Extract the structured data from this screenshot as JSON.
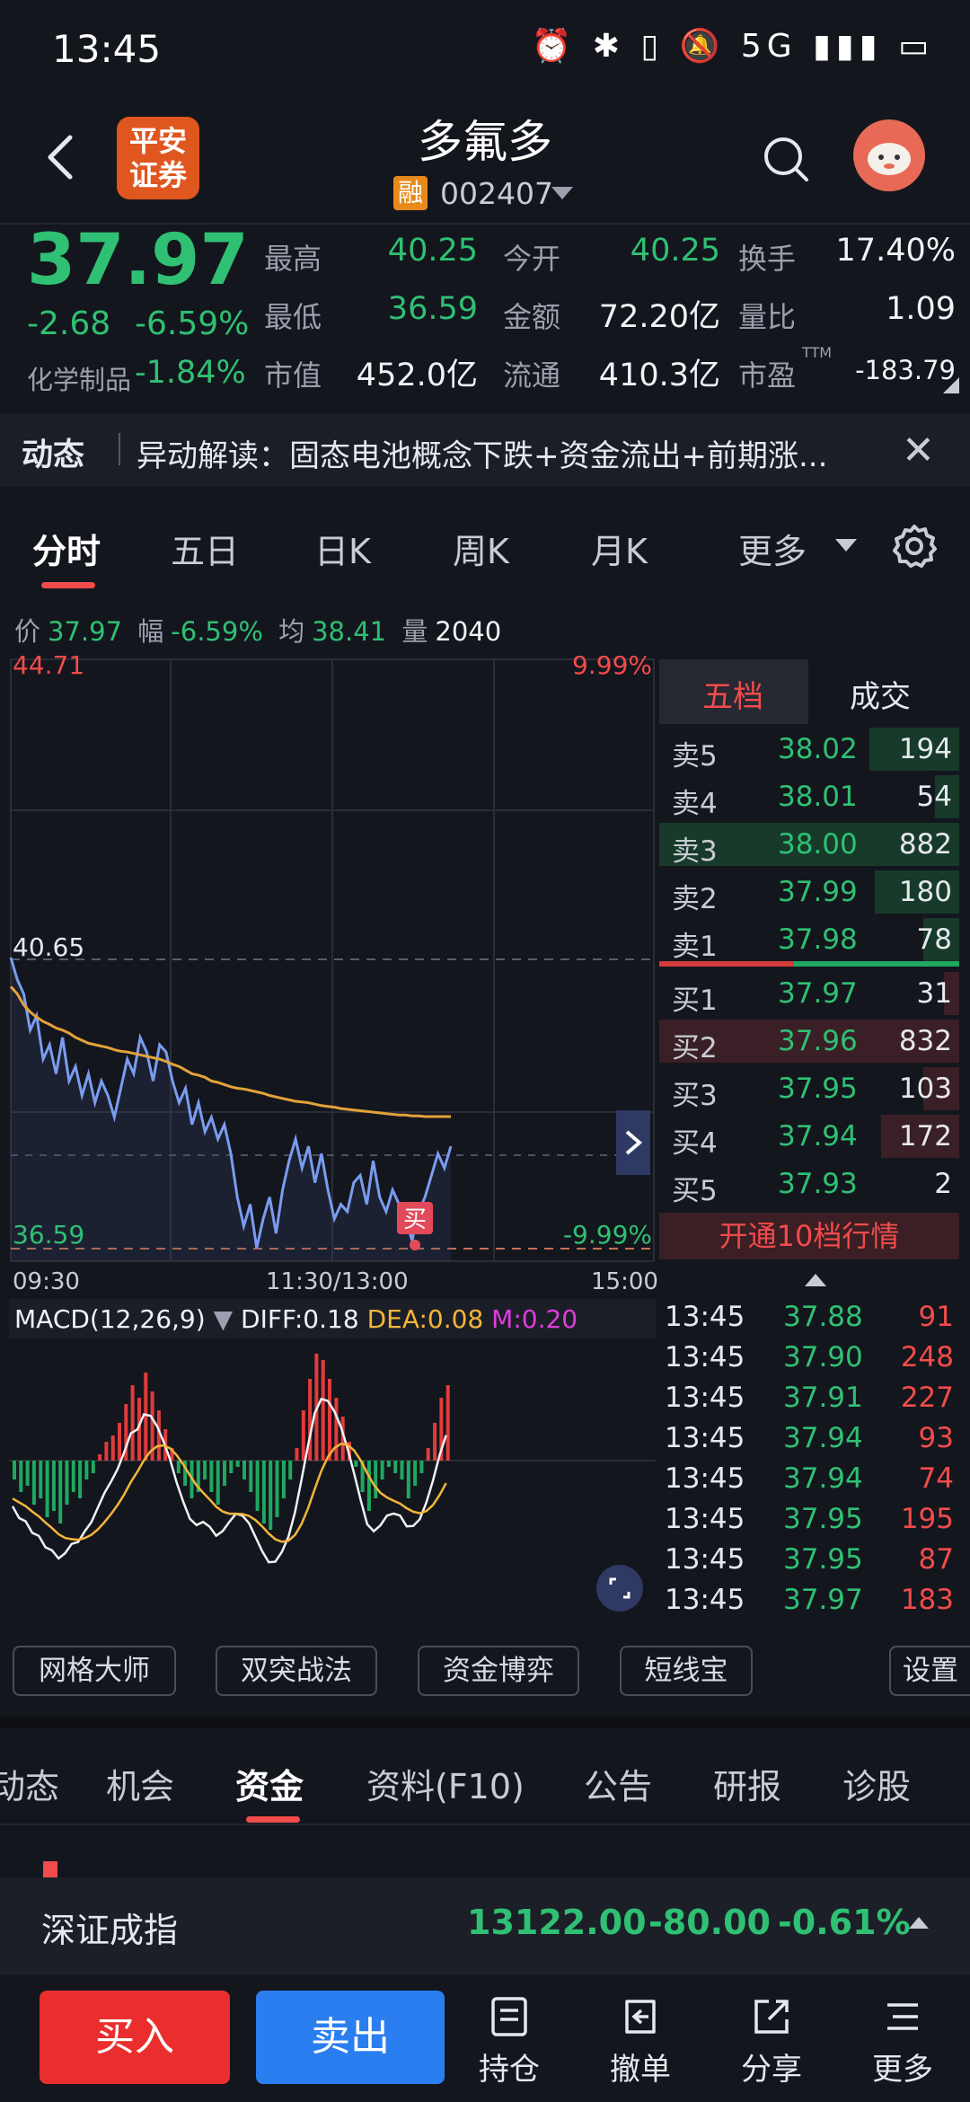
{
  "status_bar": {
    "time": "13:45",
    "icons": "⏰ ✱ ▯ 🔕 5G ▮▮▮ ▭"
  },
  "header": {
    "broker_logo_line1": "平安",
    "broker_logo_line2": "证券",
    "stock_name": "多氟多",
    "margin_badge": "融",
    "stock_code": "002407"
  },
  "quote": {
    "last_price": "37.97",
    "change_abs": "-2.68",
    "change_pct": "-6.59%",
    "industry_name": "化学制品",
    "industry_pct": "-1.84%",
    "fields": [
      {
        "key": "最高",
        "value": "40.25",
        "color": "green"
      },
      {
        "key": "今开",
        "value": "40.25",
        "color": "green"
      },
      {
        "key": "换手",
        "value": "17.40%",
        "color": "white"
      },
      {
        "key": "最低",
        "value": "36.59",
        "color": "green"
      },
      {
        "key": "金额",
        "value": "72.20亿",
        "color": "white"
      },
      {
        "key": "量比",
        "value": "1.09",
        "color": "white"
      },
      {
        "key": "市值",
        "value": "452.0亿",
        "color": "white"
      },
      {
        "key": "流通",
        "value": "410.3亿",
        "color": "white"
      },
      {
        "key": "市盈",
        "value": "-183.79",
        "color": "white"
      }
    ],
    "ttm_label": "TTM"
  },
  "news": {
    "label": "动态",
    "text": "异动解读：固态电池概念下跌+资金流出+前期涨..."
  },
  "chart_tabs": [
    "分时",
    "五日",
    "日K",
    "周K",
    "月K",
    "更多"
  ],
  "intraday_info": {
    "price_label": "价",
    "price": "37.97",
    "range_label": "幅",
    "range": "-6.59%",
    "avg_label": "均",
    "avg": "38.41",
    "vol_label": "量",
    "vol": "2040"
  },
  "chart_data": {
    "type": "line",
    "y_labels": {
      "top": "44.71",
      "mid": "40.65",
      "bottom": "36.59",
      "top_pct": "9.99%",
      "bottom_pct": "-9.99%"
    },
    "ylim": [
      36.59,
      44.71
    ],
    "x_ticks": [
      "09:30",
      "11:30/13:00",
      "15:00"
    ],
    "series": [
      {
        "values": [
          40.6,
          40.3,
          40.1,
          39.6,
          39.8,
          39.2,
          39.4,
          39.0,
          39.5,
          38.9,
          39.1,
          38.7,
          39.0,
          38.6,
          38.9,
          38.7,
          38.4,
          38.8,
          39.2,
          39.0,
          39.5,
          39.3,
          38.9,
          39.4,
          39.3,
          38.9,
          38.6,
          38.8,
          38.3,
          38.6,
          38.2,
          38.4,
          38.1,
          38.3,
          37.9,
          37.3,
          36.9,
          37.2,
          36.6,
          37.0,
          37.3,
          36.8,
          37.4,
          37.8,
          38.1,
          37.7,
          38.0,
          37.5,
          37.9,
          37.4,
          37.0,
          37.2,
          37.1,
          37.5,
          37.6,
          37.2,
          37.8,
          37.3,
          37.1,
          37.4,
          37.2,
          37.0,
          36.7,
          37.1,
          37.3,
          37.6,
          37.9,
          37.7,
          38.0
        ]
      },
      {
        "values": [
          40.2,
          40.1,
          39.95,
          39.85,
          39.78,
          39.72,
          39.68,
          39.63,
          39.6,
          39.56,
          39.5,
          39.46,
          39.42,
          39.4,
          39.38,
          39.36,
          39.33,
          39.31,
          39.3,
          39.28,
          39.26,
          39.24,
          39.22,
          39.2,
          39.17,
          39.13,
          39.1,
          39.05,
          39.0,
          38.98,
          38.95,
          38.9,
          38.88,
          38.85,
          38.82,
          38.8,
          38.79,
          38.77,
          38.75,
          38.73,
          38.7,
          38.68,
          38.66,
          38.64,
          38.62,
          38.61,
          38.6,
          38.58,
          38.56,
          38.55,
          38.54,
          38.52,
          38.51,
          38.5,
          38.49,
          38.48,
          38.47,
          38.46,
          38.45,
          38.44,
          38.43,
          38.43,
          38.42,
          38.42,
          38.41,
          38.41,
          38.41,
          38.41,
          38.41
        ]
      }
    ],
    "buy_marker": "买"
  },
  "order_book": {
    "tabs": [
      "五档",
      "成交"
    ],
    "asks": [
      {
        "label": "卖5",
        "price": "38.02",
        "vol": "194",
        "depth": 0.3
      },
      {
        "label": "卖4",
        "price": "38.01",
        "vol": "54",
        "depth": 0.08
      },
      {
        "label": "卖3",
        "price": "38.00",
        "vol": "882",
        "depth": 1.0
      },
      {
        "label": "卖2",
        "price": "37.99",
        "vol": "180",
        "depth": 0.28
      },
      {
        "label": "卖1",
        "price": "37.98",
        "vol": "78",
        "depth": 0.12
      }
    ],
    "bids": [
      {
        "label": "买1",
        "price": "37.97",
        "vol": "31",
        "depth": 0.05
      },
      {
        "label": "买2",
        "price": "37.96",
        "vol": "832",
        "depth": 1.0
      },
      {
        "label": "买3",
        "price": "37.95",
        "vol": "103",
        "depth": 0.12
      },
      {
        "label": "买4",
        "price": "37.94",
        "vol": "172",
        "depth": 0.26
      },
      {
        "label": "买5",
        "price": "37.93",
        "vol": "2",
        "depth": 0.0
      }
    ],
    "open_level10": "开通10档行情"
  },
  "macd": {
    "label": "MACD(12,26,9)",
    "diff": "DIFF:0.18",
    "dea": "DEA:0.08",
    "m": "M:0.20",
    "bars": [
      -0.3,
      -0.5,
      -0.4,
      -0.7,
      -0.6,
      -0.9,
      -0.8,
      -1.0,
      -0.7,
      -0.5,
      -0.6,
      -0.3,
      -0.2,
      0.1,
      0.3,
      0.4,
      0.6,
      0.9,
      1.2,
      1.0,
      1.4,
      1.1,
      0.8,
      0.5,
      0.2,
      -0.2,
      -0.4,
      -0.6,
      -0.5,
      -0.3,
      -0.5,
      -0.7,
      -0.4,
      -0.2,
      -0.1,
      -0.3,
      -0.5,
      -0.8,
      -1.0,
      -1.1,
      -0.9,
      -0.6,
      -0.3,
      0.2,
      0.8,
      1.3,
      1.7,
      1.6,
      1.3,
      1.0,
      0.7,
      0.3,
      -0.1,
      -0.5,
      -0.8,
      -0.6,
      -0.3,
      -0.1,
      -0.2,
      -0.3,
      -0.6,
      -0.4,
      -0.2,
      0.2,
      0.6,
      1.0,
      1.2
    ]
  },
  "ticks": [
    {
      "time": "13:45",
      "price": "37.88",
      "vol": "91"
    },
    {
      "time": "13:45",
      "price": "37.90",
      "vol": "248"
    },
    {
      "time": "13:45",
      "price": "37.91",
      "vol": "227"
    },
    {
      "time": "13:45",
      "price": "37.94",
      "vol": "93"
    },
    {
      "time": "13:45",
      "price": "37.94",
      "vol": "74"
    },
    {
      "time": "13:45",
      "price": "37.95",
      "vol": "195"
    },
    {
      "time": "13:45",
      "price": "37.95",
      "vol": "87"
    },
    {
      "time": "13:45",
      "price": "37.97",
      "vol": "183"
    }
  ],
  "tools": [
    "网格大师",
    "双突战法",
    "资金博弈",
    "短线宝",
    "设置"
  ],
  "info_tabs": [
    "动态",
    "机会",
    "资金",
    "资料(F10)",
    "公告",
    "研报",
    "诊股"
  ],
  "index_bar": {
    "name": "深证成指",
    "value": "13122.00",
    "change": "-80.00",
    "pct": "-0.61%"
  },
  "actions": {
    "buy": "买入",
    "sell": "卖出",
    "hold": "持仓",
    "cancel": "撤单",
    "share": "分享",
    "more": "更多"
  }
}
